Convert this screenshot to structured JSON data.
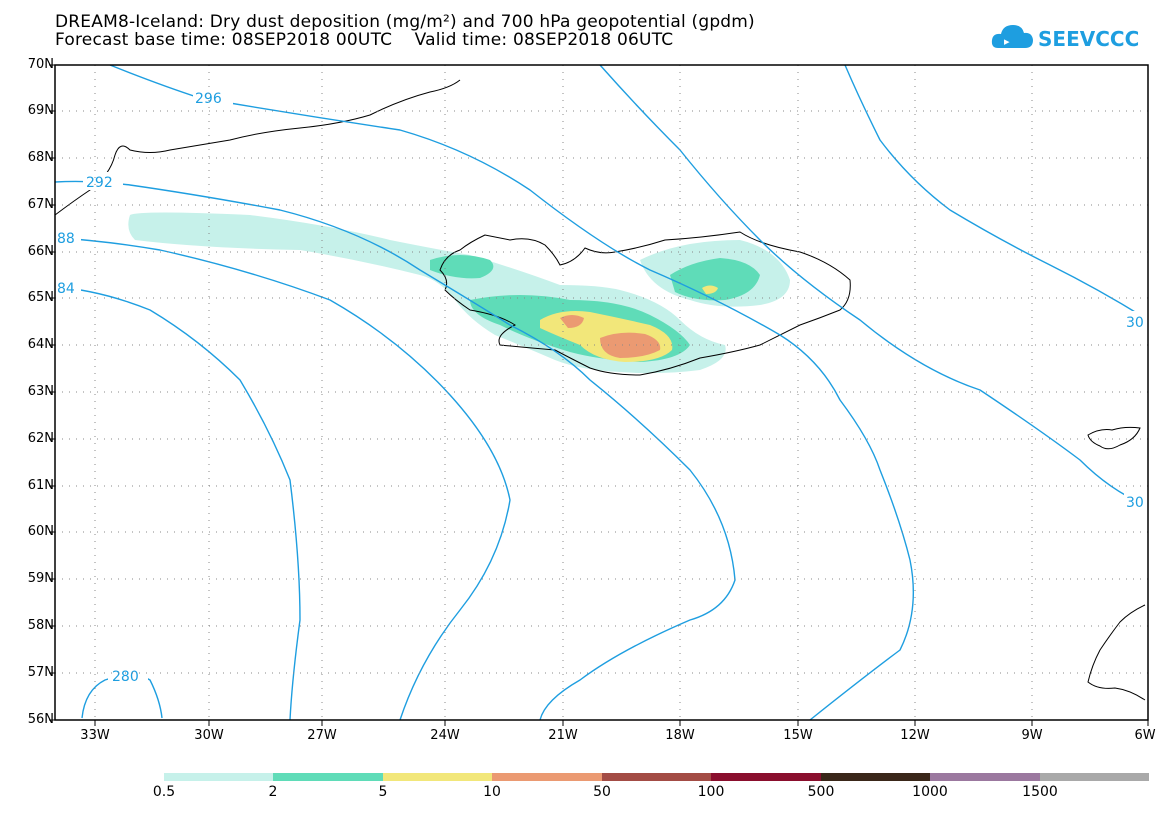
{
  "title": {
    "line1": "DREAM8-Iceland: Dry dust deposition (mg/m²) and 700 hPa geopotential (gpdm)",
    "line2": "Forecast base time: 08SEP2018 00UTC    Valid time: 08SEP2018 06UTC"
  },
  "logo": {
    "text": "SEEVCCC",
    "color": "#1e9ee0"
  },
  "map": {
    "lat_labels": [
      "70N",
      "69N",
      "68N",
      "67N",
      "66N",
      "65N",
      "64N",
      "63N",
      "62N",
      "61N",
      "60N",
      "59N",
      "58N",
      "57N",
      "56N"
    ],
    "lon_labels": [
      "33W",
      "30W",
      "27W",
      "24W",
      "21W",
      "18W",
      "15W",
      "12W",
      "9W",
      "6W"
    ],
    "contour_color": "#1e9ee0",
    "contour_labels": [
      "296",
      "292",
      "88",
      "84",
      "280",
      "30",
      "30"
    ]
  },
  "colorbar": {
    "labels": [
      "0.5",
      "2",
      "5",
      "10",
      "50",
      "100",
      "500",
      "1000",
      "1500"
    ],
    "colors": [
      "#c6f1ea",
      "#5fdcb8",
      "#f2e77a",
      "#eb9a72",
      "#a34c45",
      "#8a0e2d",
      "#3a2719",
      "#9b789f",
      "#a9a9a9"
    ]
  }
}
